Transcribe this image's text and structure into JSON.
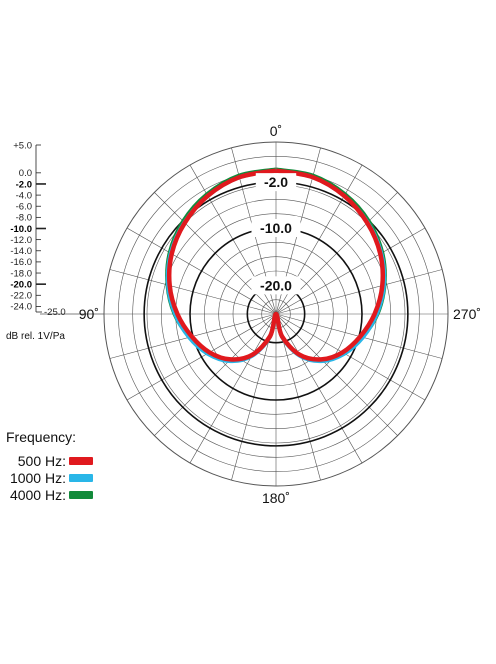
{
  "chart_data": {
    "type": "polar",
    "unit_label": "dB rel. 1V/Pa",
    "scale_labels": [
      "+5.0",
      "0.0",
      "-2.0",
      "-4.0",
      "-6.0",
      "-8.0",
      "-10.0",
      "-12.0",
      "-14.0",
      "-16.0",
      "-18.0",
      "-20.0",
      "-22.0",
      "-24.0",
      "-25.0"
    ],
    "scale_values": [
      5,
      0,
      -2,
      -4,
      -6,
      -8,
      -10,
      -12,
      -14,
      -16,
      -18,
      -20,
      -22,
      -24,
      -25
    ],
    "bold_values": [
      -2,
      -10,
      -20
    ],
    "rlim": [
      -25,
      5
    ],
    "ring_labels": [
      {
        "text": "-2.0",
        "value": -2
      },
      {
        "text": "-10.0",
        "value": -10
      },
      {
        "text": "-20.0",
        "value": -20
      }
    ],
    "angle_labels": [
      {
        "text": "0˚",
        "angle": 0
      },
      {
        "text": "90˚",
        "angle": 90
      },
      {
        "text": "180˚",
        "angle": 180
      },
      {
        "text": "270˚",
        "angle": 270
      }
    ],
    "legend_title": "Frequency:",
    "series": [
      {
        "name": "500 Hz:",
        "color": "#e0191e",
        "angles": [
          0,
          15,
          30,
          45,
          60,
          75,
          90,
          105,
          120,
          135,
          150,
          165,
          180
        ],
        "values": [
          0.0,
          -0.3,
          -1.2,
          -2.5,
          -4.0,
          -5.8,
          -7.8,
          -9.8,
          -11.6,
          -13.8,
          -16.8,
          -21.0,
          -25.0
        ]
      },
      {
        "name": "1000 Hz:",
        "color": "#29b6e8",
        "angles": [
          0,
          15,
          30,
          45,
          60,
          75,
          90,
          105,
          120,
          135,
          150,
          165,
          180
        ],
        "values": [
          0.0,
          -0.3,
          -1.2,
          -2.4,
          -3.8,
          -5.5,
          -7.4,
          -9.3,
          -11.2,
          -13.4,
          -16.5,
          -20.8,
          -25.0
        ]
      },
      {
        "name": "4000 Hz:",
        "color": "#128a3a",
        "angles": [
          0,
          15,
          30,
          45,
          60,
          75,
          90,
          105,
          120,
          135,
          150,
          165,
          180
        ],
        "values": [
          0.2,
          0.0,
          -0.9,
          -2.1,
          -3.6,
          -5.4,
          -7.3,
          -9.4,
          -11.4,
          -13.7,
          -16.8,
          -21.0,
          -25.0
        ]
      }
    ]
  },
  "colors": {
    "grid": "#555555",
    "ring_major": "#111111"
  }
}
